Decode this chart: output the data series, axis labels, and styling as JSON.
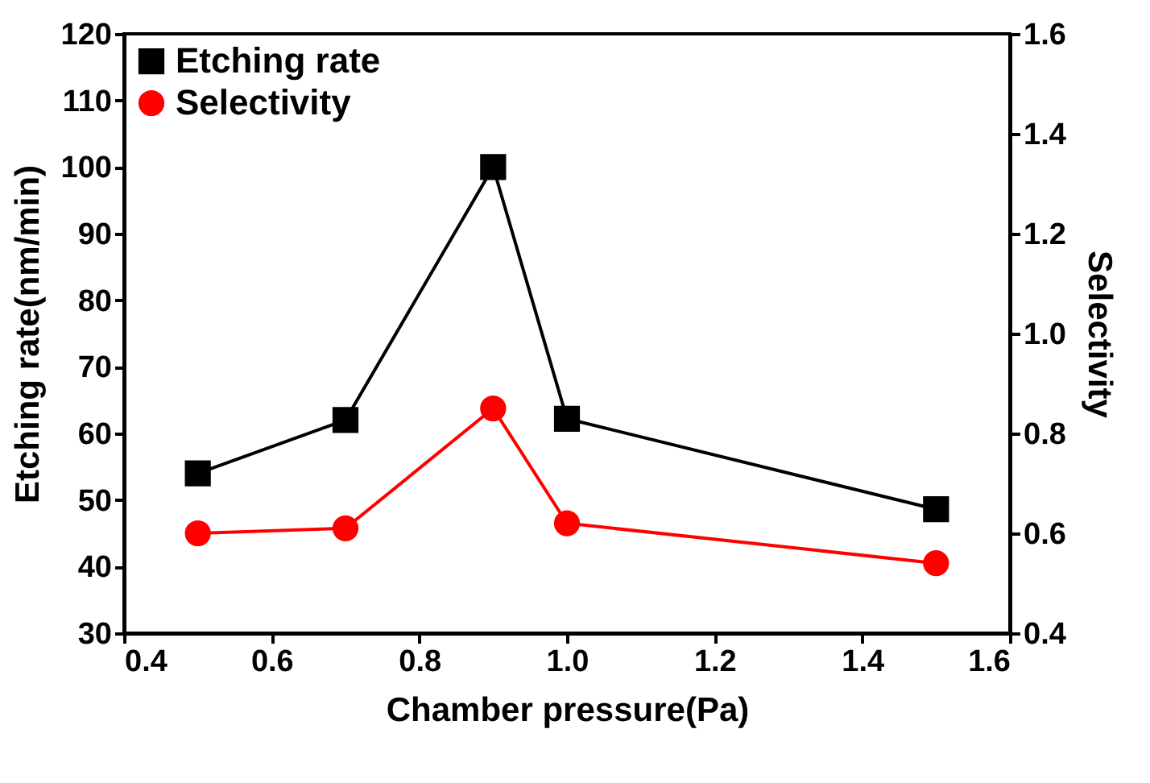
{
  "chart_data": {
    "type": "line",
    "xlabel": "Chamber pressure(Pa)",
    "ylabel": "Etching rate(nm/min)",
    "y2label": "Selectivity",
    "x": [
      0.5,
      0.7,
      0.9,
      1.0,
      1.5
    ],
    "xlim": [
      0.4,
      1.6
    ],
    "xticks": [
      0.4,
      0.6,
      0.8,
      {
        "value": 1.0,
        "label": "1.0"
      },
      1.2,
      1.4,
      1.6
    ],
    "ylim": [
      30,
      120
    ],
    "yticks": [
      30,
      40,
      50,
      60,
      70,
      80,
      90,
      100,
      110,
      120
    ],
    "y2lim": [
      0.4,
      1.6
    ],
    "y2ticks": [
      0.4,
      0.6,
      0.8,
      {
        "value": 1.0,
        "label": "1.0"
      },
      1.2,
      1.4,
      1.6
    ],
    "legend": "top left",
    "grid": false,
    "series": [
      {
        "name": "Etching rate",
        "color": "#000000",
        "marker": "square",
        "values": [
          54,
          62,
          100,
          62.2,
          48.6
        ]
      },
      {
        "name": "Selectivity",
        "color": "#ff0000",
        "marker": "circle",
        "axis": "y2",
        "values": [
          0.6,
          0.61,
          0.85,
          0.62,
          0.54
        ]
      }
    ]
  }
}
